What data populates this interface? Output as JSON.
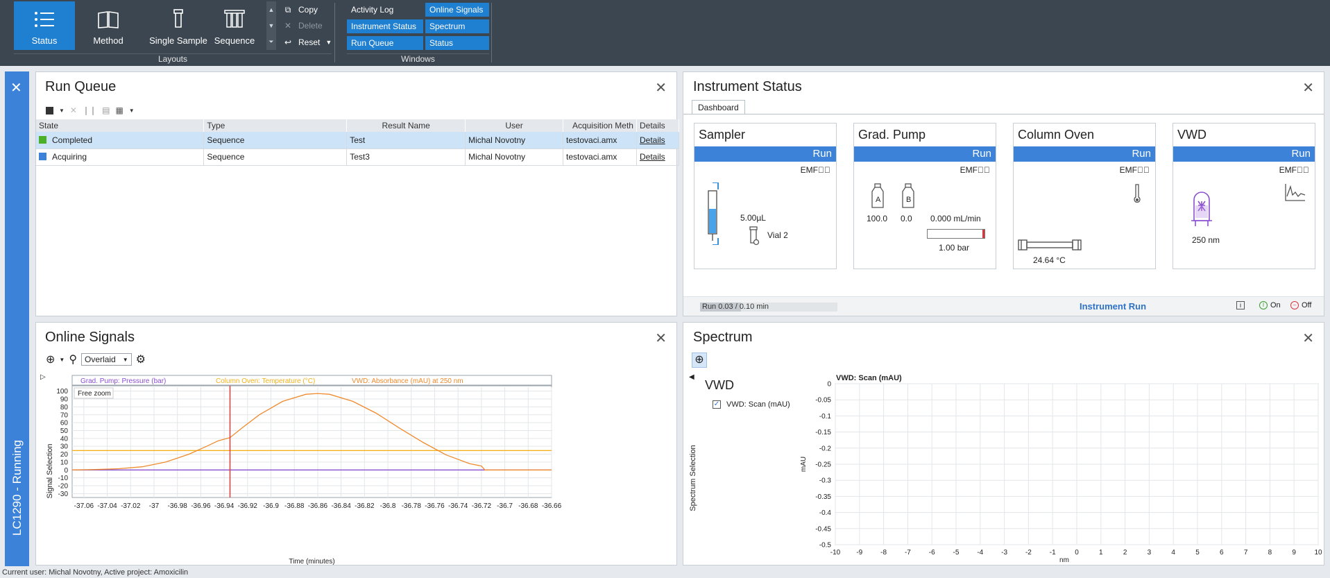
{
  "ribbon": {
    "layouts": [
      {
        "label": "Status",
        "icon": "status-list-icon",
        "active": true
      },
      {
        "label": "Method",
        "icon": "method-book-icon",
        "active": false
      },
      {
        "label": "Single Sample",
        "icon": "vial-icon",
        "active": false
      },
      {
        "label": "Sequence",
        "icon": "sequence-vials-icon",
        "active": false
      }
    ],
    "actions": [
      {
        "label": "Copy",
        "icon": "copy-icon",
        "enabled": true
      },
      {
        "label": "Delete",
        "icon": "delete-icon",
        "enabled": false
      },
      {
        "label": "Reset",
        "icon": "reset-icon",
        "enabled": true
      }
    ],
    "layouts_group_label": "Layouts",
    "windows": [
      {
        "label": "Activity Log",
        "on": false
      },
      {
        "label": "Online Signals",
        "on": true
      },
      {
        "label": "Instrument Status",
        "on": true
      },
      {
        "label": "Spectrum",
        "on": true
      },
      {
        "label": "Run Queue",
        "on": true
      },
      {
        "label": "Status",
        "on": true
      }
    ],
    "windows_group_label": "Windows"
  },
  "rail": {
    "label": "LC1290 - Running",
    "accent": "#3c82d8"
  },
  "run_queue": {
    "title": "Run Queue",
    "columns": [
      "State",
      "Type",
      "Result Name",
      "User",
      "Acquisition Meth",
      "Details"
    ],
    "rows": [
      {
        "state": "Completed",
        "state_color": "#4caf28",
        "type": "Sequence",
        "result": "Test",
        "user": "Michal Novotny",
        "method": "testovaci.amx",
        "details": "Details",
        "selected": true
      },
      {
        "state": "Acquiring",
        "state_color": "#3c82d8",
        "type": "Sequence",
        "result": "Test3",
        "user": "Michal Novotny",
        "method": "testovaci.amx",
        "details": "Details",
        "selected": false
      }
    ]
  },
  "instrument_status": {
    "title": "Instrument Status",
    "tab": "Dashboard",
    "modules": [
      {
        "name": "Sampler",
        "state": "Run",
        "emf": "EMF",
        "volume": "5.00µL",
        "vial": "Vial 2"
      },
      {
        "name": "Grad. Pump",
        "state": "Run",
        "emf": "EMF",
        "a_label": "A",
        "b_label": "B",
        "a_value": "100.0",
        "b_value": "0.0",
        "flow": "0.000 mL/min",
        "pressure": "1.00 bar"
      },
      {
        "name": "Column Oven",
        "state": "Run",
        "emf": "EMF",
        "temperature": "24.64 °C"
      },
      {
        "name": "VWD",
        "state": "Run",
        "emf": "EMF",
        "wavelength": "250 nm"
      }
    ],
    "progress_text": "Run 0.03 / 0.10 min",
    "progress_fraction": 0.3,
    "footer_status": "Instrument Run",
    "on_label": "On",
    "off_label": "Off",
    "colors": {
      "status_blue": "#2e72c8",
      "on_green": "#3a9d2b",
      "off_red": "#d9363e"
    }
  },
  "online_signals": {
    "title": "Online Signals",
    "mode": "Overlaid",
    "side_label": "Signal Selection",
    "free_zoom": "Free zoom",
    "legend": [
      {
        "name": "Grad. Pump: Pressure (bar)",
        "color": "#8a4fd1"
      },
      {
        "name": "Column Oven: Temperature (°C)",
        "color": "#f2b21c"
      },
      {
        "name": "VWD: Absorbance (mAU) at 250 nm",
        "color": "#f08a2c"
      }
    ],
    "chart_data": {
      "type": "line",
      "xlabel": "Time (minutes)",
      "xlim": [
        -37.07,
        -36.66
      ],
      "ylim": [
        -35,
        105
      ],
      "xticks": [
        "-37.06",
        "-37.04",
        "-37.02",
        "-37",
        "-36.98",
        "-36.96",
        "-36.94",
        "-36.92",
        "-36.9",
        "-36.88",
        "-36.86",
        "-36.84",
        "-36.82",
        "-36.8",
        "-36.78",
        "-36.76",
        "-36.74",
        "-36.72",
        "-36.7",
        "-36.68",
        "-36.66"
      ],
      "yticks": [
        "100",
        "90",
        "80",
        "70",
        "60",
        "50",
        "40",
        "30",
        "20",
        "10",
        "0",
        "-10",
        "-20",
        "-30"
      ],
      "cursor_x": -36.935,
      "series": [
        {
          "name": "Grad. Pump: Pressure (bar)",
          "color": "#8a4fd1",
          "x": [
            -37.07,
            -36.66
          ],
          "y": [
            0,
            0
          ]
        },
        {
          "name": "Column Oven: Temperature (°C)",
          "color": "#f2b21c",
          "x": [
            -37.07,
            -36.66
          ],
          "y": [
            24.64,
            24.64
          ]
        },
        {
          "name": "VWD: Absorbance (mAU) at 250 nm",
          "color": "#f08a2c",
          "x": [
            -37.07,
            -37.05,
            -37.03,
            -37.01,
            -36.99,
            -36.97,
            -36.955,
            -36.945,
            -36.935,
            -36.925,
            -36.91,
            -36.89,
            -36.87,
            -36.86,
            -36.85,
            -36.83,
            -36.81,
            -36.79,
            -36.77,
            -36.75,
            -36.73,
            -36.72,
            -36.717,
            -36.7,
            -36.66
          ],
          "y": [
            0,
            0.5,
            1.5,
            4,
            10,
            20,
            30,
            37,
            41,
            53,
            70,
            87,
            96,
            97,
            96,
            87,
            72,
            53,
            35,
            19,
            8,
            5,
            0,
            0,
            0
          ]
        }
      ]
    }
  },
  "spectrum": {
    "title": "Spectrum",
    "side_label": "Spectrum Selection",
    "group_label": "VWD",
    "item_label": "VWD: Scan (mAU)",
    "item_checked": true,
    "chart_data": {
      "type": "line",
      "title": "VWD: Scan (mAU)",
      "xlabel": "nm",
      "ylabel": "mAU",
      "xlim": [
        -10,
        10
      ],
      "ylim": [
        -0.5,
        0
      ],
      "xticks": [
        "-10",
        "-9",
        "-8",
        "-7",
        "-6",
        "-5",
        "-4",
        "-3",
        "-2",
        "-1",
        "0",
        "1",
        "2",
        "3",
        "4",
        "5",
        "6",
        "7",
        "8",
        "9",
        "10"
      ],
      "yticks": [
        "0",
        "-0.05",
        "-0.1",
        "-0.15",
        "-0.2",
        "-0.25",
        "-0.3",
        "-0.35",
        "-0.4",
        "-0.45",
        "-0.5"
      ],
      "series": []
    }
  },
  "statusbar": {
    "text": "Current user: Michal Novotny, Active project: Amoxicilin"
  }
}
